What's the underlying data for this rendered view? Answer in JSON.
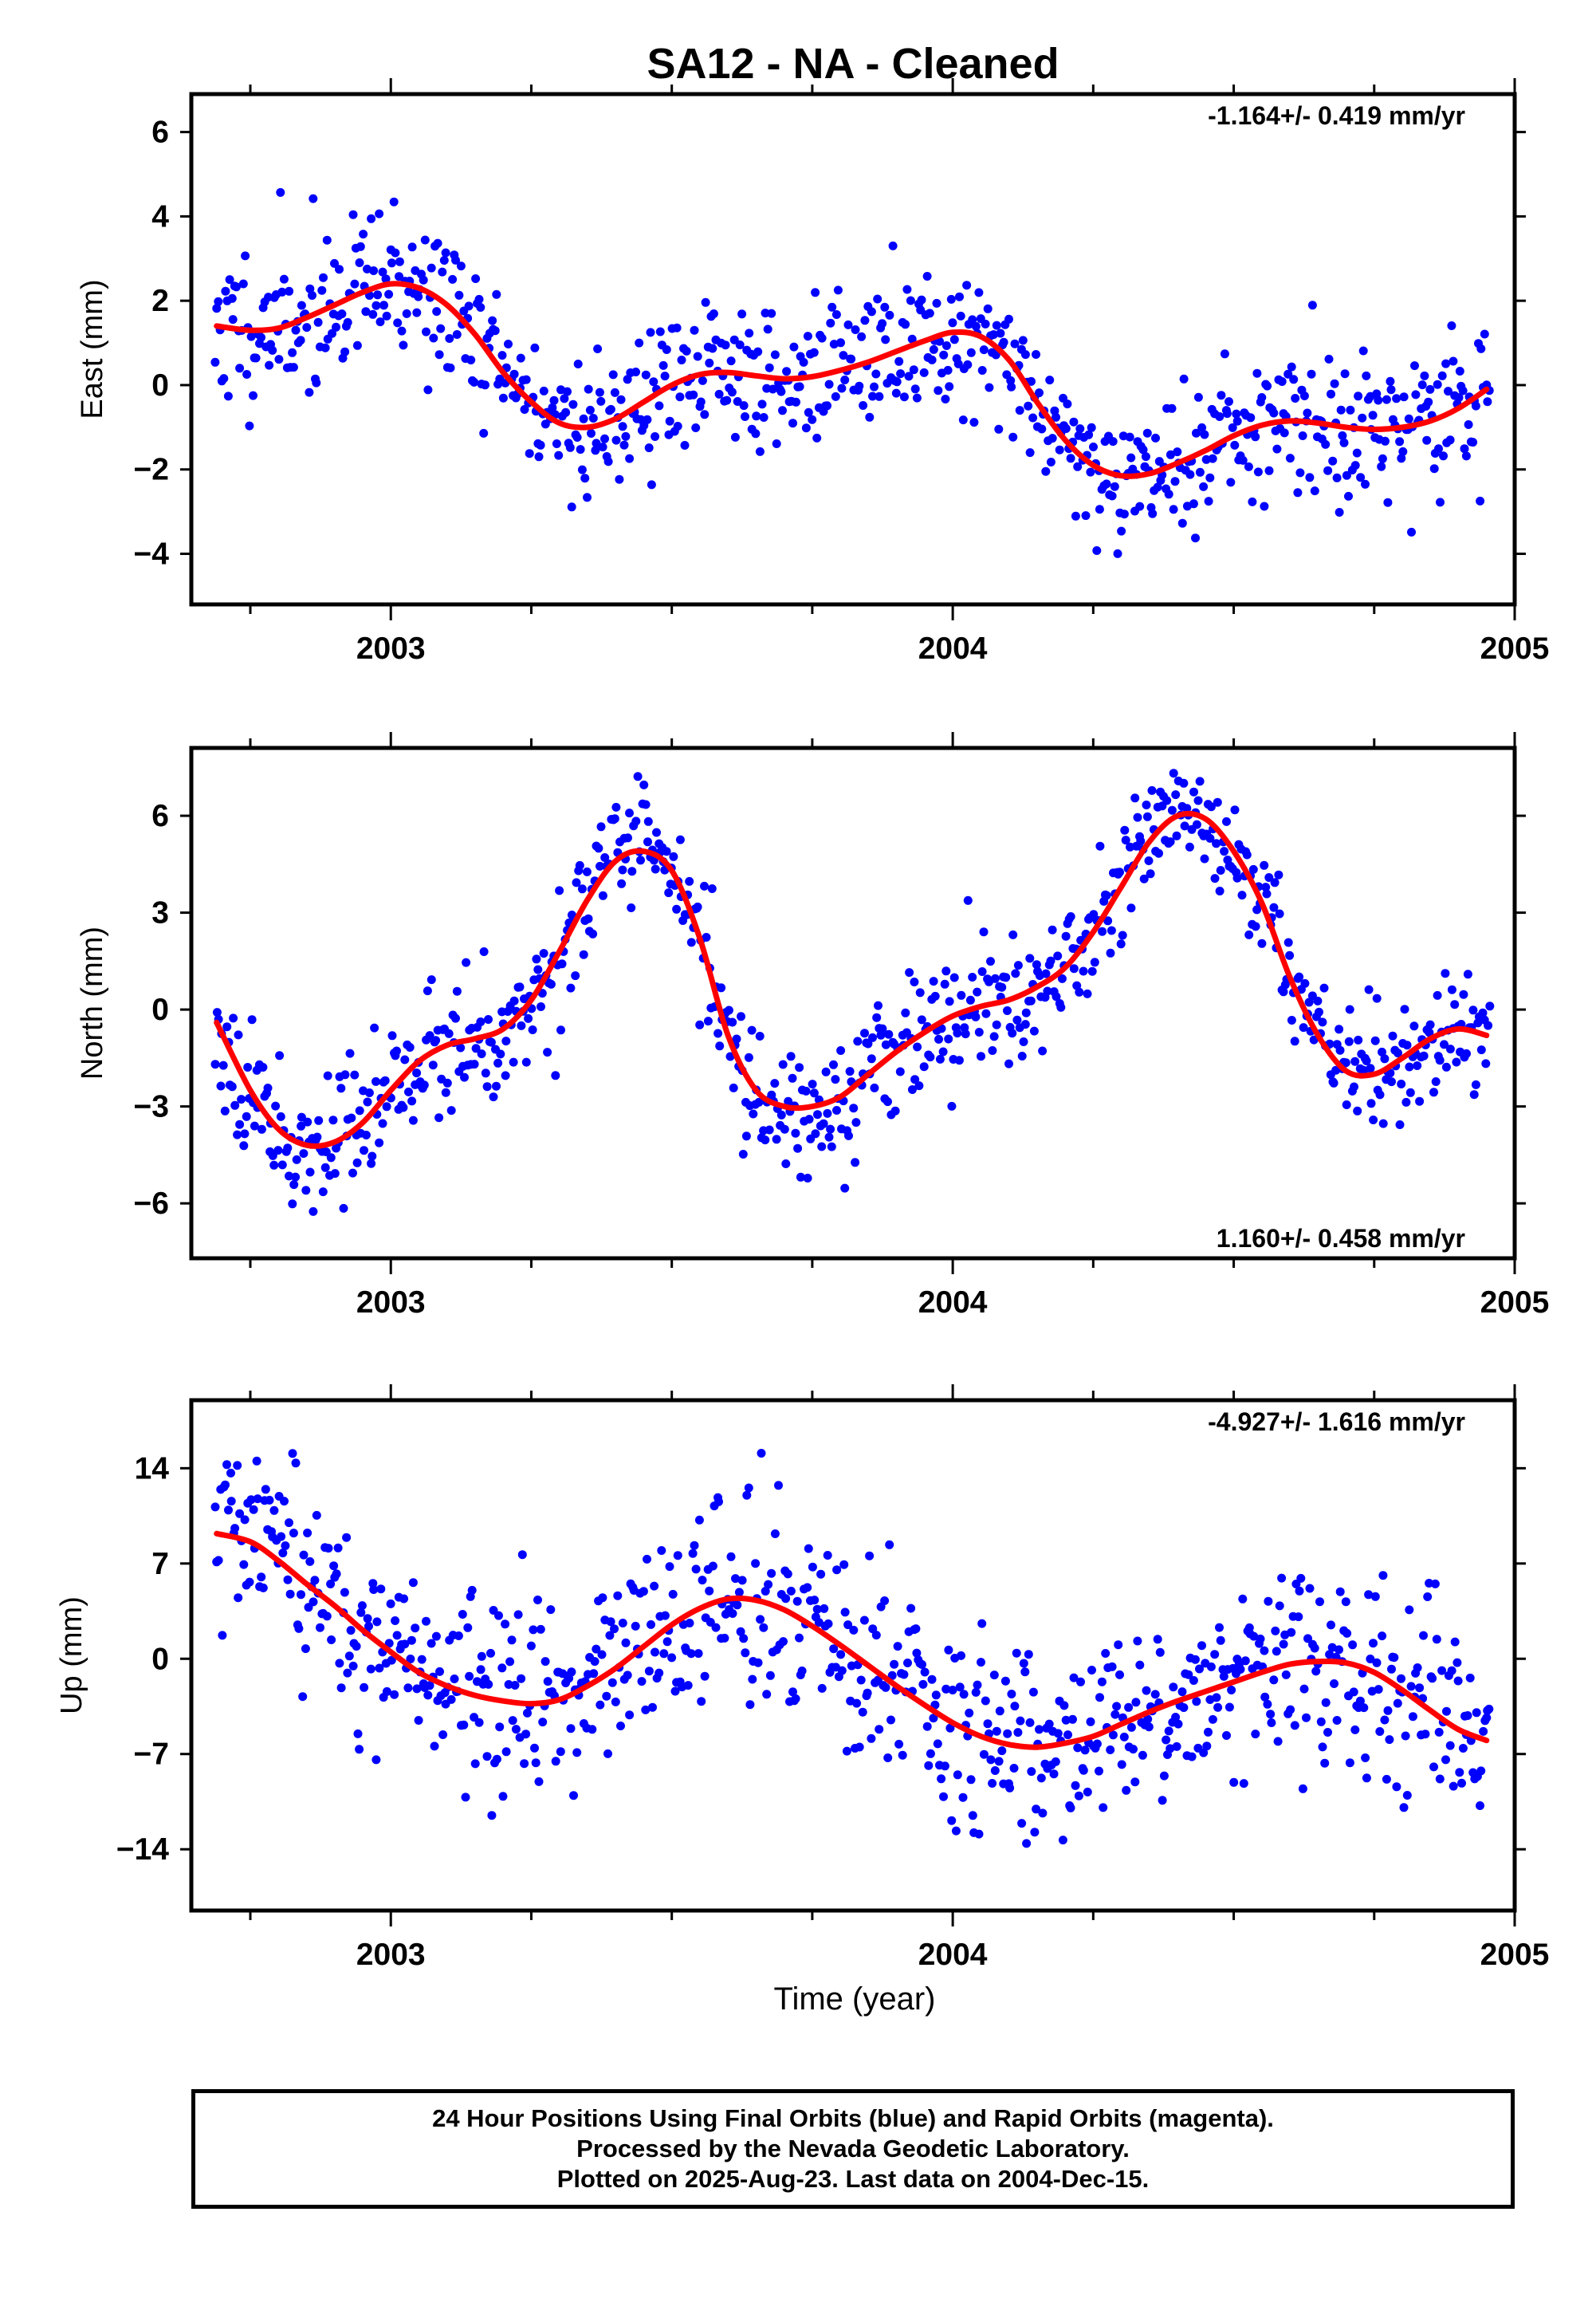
{
  "title": "SA12  - NA - Cleaned",
  "xlabel": "Time (year)",
  "footer": {
    "line1": "24 Hour Positions Using Final Orbits (blue) and Rapid Orbits (magenta).",
    "line2": "Processed by the Nevada Geodetic Laboratory.",
    "line3": "Plotted on 2025-Aug-23. Last data on 2004-Dec-15."
  },
  "colors": {
    "points": "#0000ff",
    "fit": "#ff0000",
    "axes": "#000000"
  },
  "chart_data": [
    {
      "type": "scatter",
      "name": "east",
      "ylabel": "East (mm)",
      "rate_text": "-1.164+/- 0.419 mm/yr",
      "xlim": [
        2002.645,
        2005.0
      ],
      "ylim": [
        -5.2,
        6.9
      ],
      "yticks": [
        -4,
        -2,
        0,
        2,
        4,
        6
      ],
      "xticks": [
        2003,
        2004,
        2005
      ],
      "fit_curve": {
        "x": [
          2002.69,
          2002.75,
          2002.8,
          2002.85,
          2002.9,
          2002.95,
          2003.0,
          2003.05,
          2003.1,
          2003.15,
          2003.2,
          2003.25,
          2003.3,
          2003.35,
          2003.4,
          2003.45,
          2003.5,
          2003.55,
          2003.6,
          2003.65,
          2003.7,
          2003.75,
          2003.8,
          2003.85,
          2003.9,
          2003.95,
          2004.0,
          2004.05,
          2004.1,
          2004.15,
          2004.2,
          2004.25,
          2004.3,
          2004.35,
          2004.4,
          2004.45,
          2004.5,
          2004.55,
          2004.6,
          2004.65,
          2004.7,
          2004.75,
          2004.8,
          2004.85,
          2004.9,
          2004.95
        ],
        "y": [
          1.4,
          1.3,
          1.35,
          1.6,
          1.9,
          2.2,
          2.4,
          2.3,
          1.9,
          1.2,
          0.3,
          -0.4,
          -0.9,
          -1.0,
          -0.8,
          -0.4,
          0.0,
          0.25,
          0.3,
          0.22,
          0.15,
          0.2,
          0.35,
          0.55,
          0.8,
          1.05,
          1.25,
          1.15,
          0.6,
          -0.4,
          -1.3,
          -1.9,
          -2.15,
          -2.1,
          -1.85,
          -1.55,
          -1.2,
          -0.95,
          -0.85,
          -0.9,
          -1.0,
          -1.05,
          -1.0,
          -0.85,
          -0.55,
          -0.1
        ]
      },
      "points_model": {
        "count": 780,
        "x_start": 2002.688,
        "x_end": 2004.955,
        "noise_sd_mm": 0.9,
        "seed": 11
      }
    },
    {
      "type": "scatter",
      "name": "north",
      "ylabel": "North (mm)",
      "rate_text": "1.160+/- 0.458 mm/yr",
      "xlim": [
        2002.645,
        2005.0
      ],
      "ylim": [
        -7.7,
        8.1
      ],
      "yticks": [
        -6,
        -3,
        0,
        3,
        6
      ],
      "xticks": [
        2003,
        2004,
        2005
      ],
      "fit_curve": {
        "x": [
          2002.69,
          2002.75,
          2002.8,
          2002.85,
          2002.9,
          2002.95,
          2003.0,
          2003.05,
          2003.1,
          2003.15,
          2003.2,
          2003.25,
          2003.3,
          2003.35,
          2003.4,
          2003.45,
          2003.5,
          2003.55,
          2003.6,
          2003.65,
          2003.7,
          2003.75,
          2003.8,
          2003.85,
          2003.9,
          2003.95,
          2004.0,
          2004.05,
          2004.1,
          2004.15,
          2004.2,
          2004.25,
          2004.3,
          2004.35,
          2004.4,
          2004.45,
          2004.5,
          2004.55,
          2004.6,
          2004.65,
          2004.7,
          2004.75,
          2004.8,
          2004.85,
          2004.9,
          2004.95
        ],
        "y": [
          -0.4,
          -2.5,
          -3.7,
          -4.2,
          -4.1,
          -3.5,
          -2.5,
          -1.6,
          -1.1,
          -0.9,
          -0.6,
          0.3,
          1.8,
          3.4,
          4.6,
          4.9,
          4.3,
          2.2,
          -0.8,
          -2.5,
          -3.0,
          -3.0,
          -2.7,
          -2.0,
          -1.3,
          -0.7,
          -0.2,
          0.1,
          0.3,
          0.7,
          1.3,
          2.4,
          3.8,
          5.2,
          6.0,
          5.9,
          4.9,
          3.3,
          1.0,
          -0.8,
          -1.9,
          -2.0,
          -1.5,
          -0.9,
          -0.6,
          -0.8
        ]
      },
      "points_model": {
        "count": 780,
        "x_start": 2002.688,
        "x_end": 2004.955,
        "noise_sd_mm": 1.0,
        "seed": 23
      }
    },
    {
      "type": "scatter",
      "name": "up",
      "ylabel": "Up (mm)",
      "rate_text": "-4.927+/- 1.616 mm/yr",
      "xlim": [
        2002.645,
        2005.0
      ],
      "ylim": [
        -18.5,
        19.0
      ],
      "yticks": [
        -14,
        -7,
        0,
        7,
        14
      ],
      "xticks": [
        2003,
        2004,
        2005
      ],
      "fit_curve": {
        "x": [
          2002.69,
          2002.75,
          2002.8,
          2002.85,
          2002.9,
          2002.95,
          2003.0,
          2003.05,
          2003.1,
          2003.15,
          2003.2,
          2003.25,
          2003.3,
          2003.35,
          2003.4,
          2003.45,
          2003.5,
          2003.55,
          2003.6,
          2003.65,
          2003.7,
          2003.75,
          2003.8,
          2003.85,
          2003.9,
          2003.95,
          2004.0,
          2004.05,
          2004.1,
          2004.15,
          2004.2,
          2004.25,
          2004.3,
          2004.35,
          2004.4,
          2004.45,
          2004.5,
          2004.55,
          2004.6,
          2004.65,
          2004.7,
          2004.75,
          2004.8,
          2004.85,
          2004.9,
          2004.95
        ],
        "y": [
          9.2,
          8.6,
          7.2,
          5.5,
          3.9,
          2.1,
          0.5,
          -1.0,
          -2.0,
          -2.7,
          -3.1,
          -3.3,
          -3.0,
          -2.0,
          -0.7,
          0.9,
          2.5,
          3.7,
          4.4,
          4.3,
          3.6,
          2.4,
          1.0,
          -0.5,
          -2.0,
          -3.4,
          -4.7,
          -5.7,
          -6.3,
          -6.5,
          -6.2,
          -5.7,
          -4.8,
          -3.9,
          -3.1,
          -2.4,
          -1.7,
          -1.0,
          -0.4,
          -0.2,
          -0.3,
          -1.0,
          -2.3,
          -3.8,
          -5.2,
          -6.0
        ]
      },
      "points_model": {
        "count": 780,
        "x_start": 2002.688,
        "x_end": 2004.955,
        "noise_sd_mm": 3.6,
        "seed": 37
      }
    }
  ]
}
